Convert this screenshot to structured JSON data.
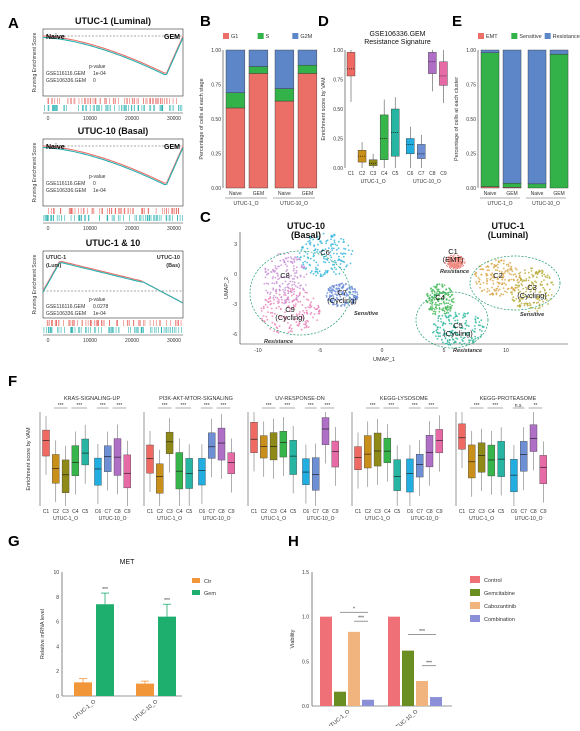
{
  "panels": {
    "A": "A",
    "B": "B",
    "C": "C",
    "D": "D",
    "E": "E",
    "F": "F",
    "G": "G",
    "H": "H"
  },
  "gsea": [
    {
      "title": "UTUC-1 (Luminal)",
      "left": "Naive",
      "right": "GEM",
      "pvalue_label": "p-value",
      "rows": [
        {
          "name": "GSE116116.GEM",
          "p": "1e-04",
          "color": "#e8706a"
        },
        {
          "name": "GSE106336.GEM",
          "p": "0",
          "color": "#2ab1b0"
        }
      ],
      "ylabel": "Running Enrichment Score",
      "curve": "min"
    },
    {
      "title": "UTUC-10 (Basal)",
      "left": "Naive",
      "right": "GEM",
      "pvalue_label": "p-value",
      "rows": [
        {
          "name": "GSE116116.GEM",
          "p": "0",
          "color": "#e8706a"
        },
        {
          "name": "GSE106336.GEM",
          "p": "1e-04",
          "color": "#2ab1b0"
        }
      ],
      "ylabel": "Running Enrichment Score",
      "curve": "min"
    },
    {
      "title": "UTUC-1 & 10",
      "left": "UTUC-1\n(Lum)",
      "left1": "UTUC-1",
      "left2": "(Lum)",
      "right1": "UTUC-10",
      "right2": "(Bas)",
      "pvalue_label": "p-value",
      "rows": [
        {
          "name": "GSE116116.GEM",
          "p": "0.0278",
          "color": "#e8706a"
        },
        {
          "name": "GSE106336.GEM",
          "p": "1e-04",
          "color": "#2ab1b0"
        }
      ],
      "ylabel": "Running Enrichment Score",
      "curve": "max"
    }
  ],
  "gsea_xticks": [
    "0",
    "10000",
    "20000",
    "30000"
  ],
  "chart_data": [
    {
      "id": "B",
      "type": "bar",
      "stacked": true,
      "ylabel": "Percentage of cells at each stage",
      "legend": [
        "G1",
        "S",
        "G2M"
      ],
      "colors": [
        "#ec6f67",
        "#34b24a",
        "#5c86c8"
      ],
      "categories": [
        "Naive",
        "GEM",
        "Naive",
        "GEM"
      ],
      "groups": [
        "UTUC-1_O",
        "UTUC-10_O"
      ],
      "yticks": [
        "0.00",
        "0.25",
        "0.50",
        "0.75",
        "1.00"
      ],
      "series": [
        {
          "name": "G1",
          "values": [
            0.58,
            0.83,
            0.63,
            0.83
          ]
        },
        {
          "name": "S",
          "values": [
            0.11,
            0.05,
            0.09,
            0.06
          ]
        },
        {
          "name": "G2M",
          "values": [
            0.31,
            0.12,
            0.28,
            0.11
          ]
        }
      ]
    },
    {
      "id": "D",
      "type": "box",
      "title": "GSE106336.GEM",
      "subtitle": "Resistance Signature",
      "ylabel": "Enrichment score by VAM",
      "categories": [
        "C1",
        "C2",
        "C3",
        "C4",
        "C5",
        "C6",
        "C7",
        "C8",
        "C9"
      ],
      "groups": [
        "UTUC-1_O",
        "UTUC-10_O"
      ],
      "yticks": [
        "0.00",
        "0.25",
        "0.50",
        "0.75",
        "1.00"
      ],
      "colors": [
        "#ef6a62",
        "#c8901a",
        "#8f8a18",
        "#37b44a",
        "#25b5a2",
        "#22aee0",
        "#6e8fd3",
        "#b06fc7",
        "#e66aa5"
      ],
      "boxes": [
        [
          0.78,
          0.84,
          0.98,
          1.0,
          0.56
        ],
        [
          0.05,
          0.1,
          0.15,
          0.22,
          0.0
        ],
        [
          0.02,
          0.04,
          0.07,
          0.12,
          0.0
        ],
        [
          0.07,
          0.25,
          0.45,
          0.58,
          0.0
        ],
        [
          0.1,
          0.3,
          0.5,
          0.6,
          0.0
        ],
        [
          0.12,
          0.2,
          0.25,
          0.35,
          0.0
        ],
        [
          0.08,
          0.12,
          0.2,
          0.28,
          0.0
        ],
        [
          0.8,
          0.9,
          0.98,
          1.0,
          0.65
        ],
        [
          0.7,
          0.78,
          0.9,
          1.0,
          0.55
        ]
      ]
    },
    {
      "id": "E",
      "type": "bar",
      "stacked": true,
      "ylabel": "Percentage of cells at each cluster",
      "legend": [
        "EMT",
        "Sensitive",
        "Resistance"
      ],
      "colors": [
        "#ec6f67",
        "#34b24a",
        "#5c86c8"
      ],
      "categories": [
        "Naive",
        "GEM",
        "Naive",
        "GEM"
      ],
      "groups": [
        "UTUC-1_O",
        "UTUC-10_O"
      ],
      "yticks": [
        "0.00",
        "0.25",
        "0.50",
        "0.75",
        "1.00"
      ],
      "series": [
        {
          "name": "EMT",
          "values": [
            0.01,
            0.005,
            0.0,
            0.0
          ]
        },
        {
          "name": "Sensitive",
          "values": [
            0.97,
            0.03,
            0.03,
            0.97
          ]
        },
        {
          "name": "Resistance",
          "values": [
            0.02,
            0.965,
            0.97,
            0.03
          ]
        }
      ]
    },
    {
      "id": "F",
      "type": "box",
      "ylabel": "Enrichment score by VAM",
      "facets": [
        "KRAS-SIGNALING-UP",
        "PI3K-AKT-MTOR-SIGNALING",
        "UV-RESPONSE-DN",
        "KEGG-LYSOSOME",
        "KEGG-PROTEASOME"
      ],
      "categories": [
        "C1",
        "C2",
        "C3",
        "C4",
        "C5",
        "C6",
        "C7",
        "C8",
        "C9"
      ],
      "groups": [
        "UTUC-1_O",
        "UTUC-10_O"
      ],
      "sig": "***",
      "sig_ns": "n.s.",
      "sig_star2": "**"
    },
    {
      "id": "G",
      "type": "bar",
      "title": "MET",
      "ylabel": "Relative mRNA level",
      "categories": [
        "UTUC-1_O",
        "UTUC-10_O"
      ],
      "legend": [
        "Ctr",
        "Gem"
      ],
      "colors": [
        "#f2963a",
        "#1eae6e"
      ],
      "yticks": [
        "0",
        "2",
        "4",
        "6",
        "8",
        "10"
      ],
      "ylim": [
        0,
        10
      ],
      "series": [
        {
          "name": "Ctr",
          "values": [
            1.1,
            1.0
          ],
          "err": [
            0.3,
            0.2
          ]
        },
        {
          "name": "Gem",
          "values": [
            7.4,
            6.4
          ],
          "err": [
            0.9,
            1.0
          ]
        }
      ],
      "sig": "***"
    },
    {
      "id": "H",
      "type": "bar",
      "ylabel": "Viability",
      "categories": [
        "UTUC-1_O",
        "UTUC-10_O"
      ],
      "legend": [
        "Control",
        "Gemcitabine",
        "Cabozantinib",
        "Combination"
      ],
      "colors": [
        "#ef7177",
        "#6b8e23",
        "#f2b47e",
        "#8a8fd8"
      ],
      "yticks": [
        "0.0",
        "0.5",
        "1.0",
        "1.5"
      ],
      "ylim": [
        0,
        1.5
      ],
      "series": [
        {
          "name": "Control",
          "values": [
            1.0,
            1.0
          ]
        },
        {
          "name": "Gemcitabine",
          "values": [
            0.16,
            0.62
          ]
        },
        {
          "name": "Cabozantinib",
          "values": [
            0.83,
            0.28
          ]
        },
        {
          "name": "Combination",
          "values": [
            0.07,
            0.1
          ]
        }
      ],
      "sig": "***",
      "sig1": "*"
    }
  ],
  "umap": {
    "xlabel": "UMAP_1",
    "ylabel": "UMAP_2",
    "xticks": [
      "-10",
      "-5",
      "0",
      "5",
      "10"
    ],
    "yticks": [
      "3",
      "0",
      "-3",
      "-6"
    ],
    "left_title": "UTUC-10",
    "left_sub": "(Basal)",
    "right_title": "UTUC-1",
    "right_sub": "(Luminal)",
    "clusters": [
      {
        "name": "C6",
        "color": "#35b6dd"
      },
      {
        "name": "C8",
        "color": "#c98fd6"
      },
      {
        "name": "C9",
        "sub": "(Cycling)",
        "color": "#e980b6"
      },
      {
        "name": "C7",
        "sub": "(Cycling)",
        "color": "#6f8fd8"
      },
      {
        "name": "C1",
        "sub": "(EMT)",
        "color": "#f08a80"
      },
      {
        "name": "C2",
        "color": "#d9a84a"
      },
      {
        "name": "C3",
        "sub": "(Cycling)",
        "color": "#b9ae3d"
      },
      {
        "name": "C4",
        "color": "#49ba5c"
      },
      {
        "name": "C5",
        "sub": "(Cycling)",
        "color": "#2fb79d"
      }
    ],
    "labels": {
      "resistance": "Resistance",
      "sensitive": "Sensitive"
    }
  }
}
